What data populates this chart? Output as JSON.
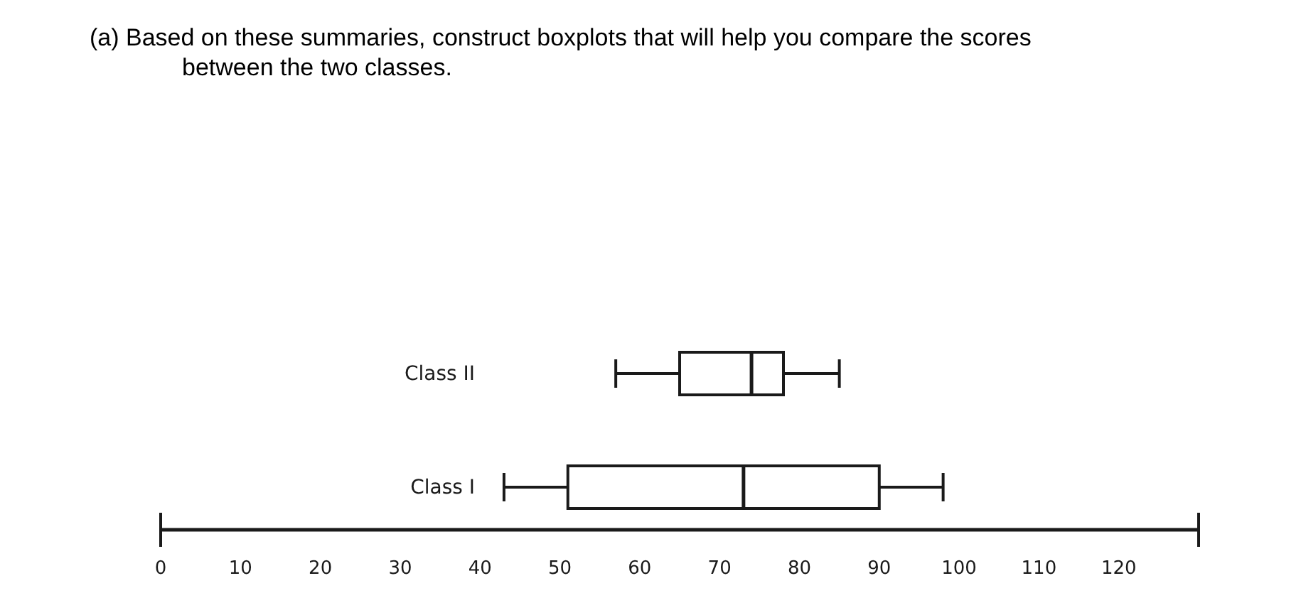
{
  "chart_data": {
    "type": "box",
    "title": "(a) Based on these summaries, construct boxplots that will help you compare the scores between the two classes.",
    "orientation": "horizontal",
    "categories": [
      "Class II",
      "Class I"
    ],
    "boxes": [
      {
        "low": 57,
        "q1": 65,
        "median": 74,
        "q3": 78,
        "high": 85
      },
      {
        "low": 43,
        "q1": 51,
        "median": 73,
        "q3": 90,
        "high": 98
      }
    ],
    "xlim": [
      0,
      130
    ],
    "xticks": [
      0,
      10,
      20,
      30,
      40,
      50,
      60,
      70,
      80,
      90,
      100,
      110,
      120
    ]
  }
}
